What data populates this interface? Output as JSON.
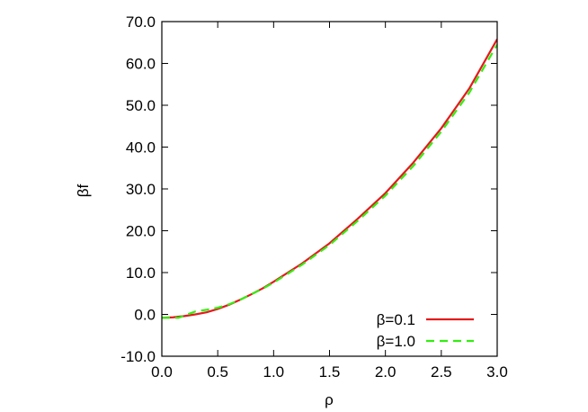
{
  "chart_data": {
    "type": "line",
    "title": "",
    "xlabel": "ρ",
    "ylabel": "βf",
    "xlim": [
      0.0,
      3.0
    ],
    "ylim": [
      -10.0,
      70.0
    ],
    "xticks": [
      "0.0",
      "0.5",
      "1.0",
      "1.5",
      "2.0",
      "2.5",
      "3.0"
    ],
    "yticks": [
      "-10.0",
      "0.0",
      "10.0",
      "20.0",
      "30.0",
      "40.0",
      "50.0",
      "60.0",
      "70.0"
    ],
    "grid": false,
    "legend_position": "bottom-right",
    "series": [
      {
        "name": "β=0.1",
        "color": "#e31a1c",
        "style": "solid",
        "x": [
          0.0,
          0.1,
          0.2,
          0.3,
          0.4,
          0.5,
          0.6,
          0.7,
          0.8,
          0.9,
          1.0,
          1.25,
          1.5,
          1.75,
          2.0,
          2.25,
          2.5,
          2.75,
          3.0
        ],
        "y": [
          -0.8,
          -0.7,
          -0.4,
          0.0,
          0.5,
          1.3,
          2.3,
          3.5,
          4.8,
          6.2,
          7.8,
          12.1,
          17.0,
          22.8,
          29.0,
          36.3,
          44.5,
          54.0,
          65.8
        ]
      },
      {
        "name": "β=1.0",
        "color": "#33ee11",
        "style": "dashed",
        "x": [
          0.0,
          0.15,
          0.25,
          0.3,
          0.4,
          0.5,
          0.6,
          0.7,
          0.8,
          0.9,
          1.0,
          1.25,
          1.5,
          1.75,
          2.0,
          2.25,
          2.5,
          2.75,
          3.0
        ],
        "y": [
          -0.8,
          -0.8,
          0.2,
          0.7,
          1.1,
          1.6,
          2.4,
          3.5,
          4.8,
          6.1,
          7.6,
          11.8,
          16.6,
          22.3,
          28.4,
          35.5,
          43.7,
          53.0,
          64.5
        ]
      }
    ]
  }
}
